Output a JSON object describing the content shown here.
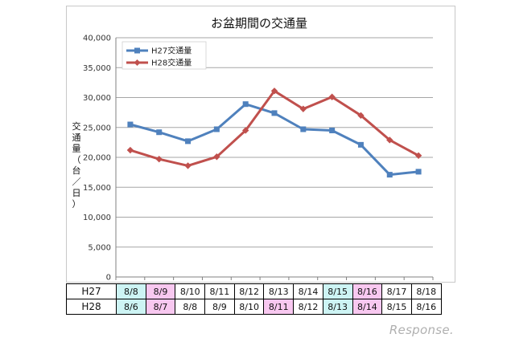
{
  "chart_data": {
    "type": "line",
    "title": "お盆期間の交通量",
    "ylabel": "交通量（台／日）",
    "ylim": [
      0,
      40000
    ],
    "yticks": [
      "0",
      "5,000",
      "10,000",
      "15,000",
      "20,000",
      "25,000",
      "30,000",
      "35,000",
      "40,000"
    ],
    "grid": true,
    "legend_position": "top-left",
    "series": [
      {
        "name": "H27交通量",
        "color": "#4f81bd",
        "marker": "square",
        "x": [
          "8/8",
          "8/9",
          "8/10",
          "8/11",
          "8/12",
          "8/13",
          "8/14",
          "8/15",
          "8/16",
          "8/17",
          "8/18"
        ],
        "values": [
          25500,
          24200,
          22700,
          24700,
          28900,
          27400,
          24700,
          24500,
          22100,
          17100,
          17600
        ]
      },
      {
        "name": "H28交通量",
        "color": "#c0504d",
        "marker": "diamond",
        "x": [
          "8/6",
          "8/7",
          "8/8",
          "8/9",
          "8/10",
          "8/11",
          "8/12",
          "8/13",
          "8/14",
          "8/15",
          "8/16"
        ],
        "values": [
          21200,
          19700,
          18600,
          20100,
          24500,
          31100,
          28100,
          30100,
          27000,
          22900,
          20300
        ]
      }
    ]
  },
  "date_table": {
    "rows": [
      {
        "label": "H27",
        "cells": [
          {
            "text": "8/8",
            "bg": "#cdf4f4"
          },
          {
            "text": "8/9",
            "bg": "#f8c8f0"
          },
          {
            "text": "8/10",
            "bg": ""
          },
          {
            "text": "8/11",
            "bg": ""
          },
          {
            "text": "8/12",
            "bg": ""
          },
          {
            "text": "8/13",
            "bg": ""
          },
          {
            "text": "8/14",
            "bg": ""
          },
          {
            "text": "8/15",
            "bg": "#cdf4f4"
          },
          {
            "text": "8/16",
            "bg": "#f8c8f0"
          },
          {
            "text": "8/17",
            "bg": ""
          },
          {
            "text": "8/18",
            "bg": ""
          }
        ]
      },
      {
        "label": "H28",
        "cells": [
          {
            "text": "8/6",
            "bg": "#cdf4f4"
          },
          {
            "text": "8/7",
            "bg": "#f8c8f0"
          },
          {
            "text": "8/8",
            "bg": ""
          },
          {
            "text": "8/9",
            "bg": ""
          },
          {
            "text": "8/10",
            "bg": ""
          },
          {
            "text": "8/11",
            "bg": "#f8c8f0"
          },
          {
            "text": "8/12",
            "bg": ""
          },
          {
            "text": "8/13",
            "bg": "#cdf4f4"
          },
          {
            "text": "8/14",
            "bg": "#f8c8f0"
          },
          {
            "text": "8/15",
            "bg": ""
          },
          {
            "text": "8/16",
            "bg": ""
          }
        ]
      }
    ]
  },
  "watermark": "Response."
}
